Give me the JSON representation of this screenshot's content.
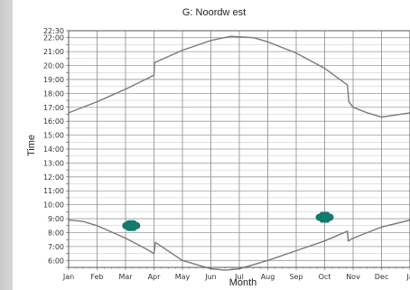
{
  "chart_data": {
    "type": "line",
    "title": "G: Noordw est",
    "xlabel": "Month",
    "ylabel": "Time",
    "x_ticks": [
      "Jan",
      "Feb",
      "Mar",
      "Apr",
      "May",
      "Jun",
      "Jul",
      "Aug",
      "Sep",
      "Oct",
      "Nov",
      "Dec",
      "Ja"
    ],
    "y_ticks": [
      "6:00",
      "7:00",
      "8:00",
      "9:00",
      "10:00",
      "11:00",
      "12:00",
      "13:00",
      "14:00",
      "15:00",
      "16:00",
      "17:00",
      "18:00",
      "19:00",
      "20:00",
      "21:00",
      "22:00"
    ],
    "tick_label_suffix": "",
    "y_top_label": "22:30",
    "ylim": [
      5.5,
      22.5
    ],
    "xlim": [
      0,
      12
    ],
    "grid": true,
    "series": [
      {
        "color": "#7a7a7a",
        "x": [
          0,
          1,
          2,
          2.7,
          3.0,
          3.02,
          4,
          5,
          5.7,
          6.5,
          7,
          8,
          9,
          9.8,
          9.85,
          10,
          10.5,
          11,
          12
        ],
        "y": [
          16.6,
          17.4,
          18.3,
          19.0,
          19.3,
          20.2,
          21.1,
          21.8,
          22.1,
          22.0,
          21.7,
          20.9,
          19.8,
          18.6,
          17.4,
          17.0,
          16.6,
          16.3,
          16.6
        ]
      },
      {
        "color": "#7a7a7a",
        "x": [
          0,
          0.5,
          1,
          2,
          2.75,
          3.0,
          3.05,
          4,
          5,
          5.5,
          6,
          7,
          8,
          9,
          9.8,
          9.83,
          10,
          11,
          12
        ],
        "y": [
          8.9,
          8.8,
          8.5,
          7.6,
          6.8,
          6.5,
          7.3,
          6.0,
          5.4,
          5.3,
          5.4,
          6.0,
          6.7,
          7.4,
          8.1,
          7.4,
          7.6,
          8.4,
          8.9
        ]
      }
    ],
    "markers": [
      {
        "x": 2.2,
        "y": 8.5,
        "color": "#137a6e"
      },
      {
        "x": 9.0,
        "y": 9.1,
        "color": "#137a6e"
      }
    ]
  }
}
